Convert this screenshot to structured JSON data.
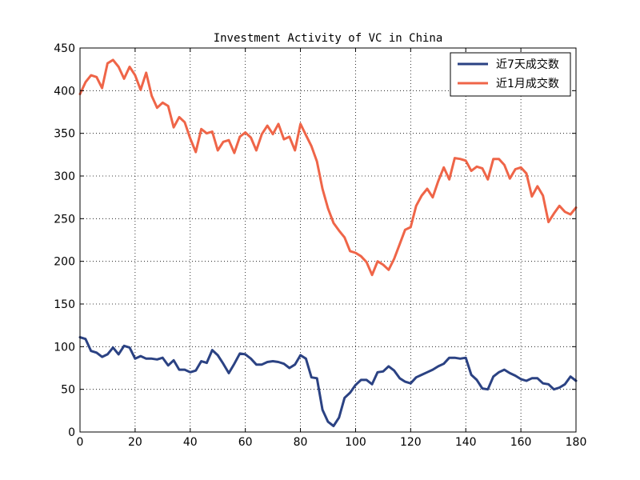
{
  "chart_data": {
    "type": "line",
    "title": "Investment Activity of VC in China",
    "xlabel": "",
    "ylabel": "",
    "xlim": [
      0,
      180
    ],
    "ylim": [
      0,
      450
    ],
    "xticks": [
      "0",
      "20",
      "40",
      "60",
      "80",
      "100",
      "120",
      "140",
      "160",
      "180"
    ],
    "yticks": [
      "0",
      "50",
      "100",
      "150",
      "200",
      "250",
      "300",
      "350",
      "400",
      "450"
    ],
    "grid": true,
    "legend_position": "top-right",
    "series": [
      {
        "name": "近7天成交数",
        "color": "#2b4283",
        "x": [
          0,
          2,
          4,
          6,
          8,
          10,
          12,
          14,
          16,
          18,
          20,
          22,
          24,
          26,
          28,
          30,
          32,
          34,
          36,
          38,
          40,
          42,
          44,
          46,
          48,
          50,
          52,
          54,
          56,
          58,
          60,
          62,
          64,
          66,
          68,
          70,
          72,
          74,
          76,
          78,
          80,
          82,
          84,
          86,
          88,
          90,
          92,
          94,
          96,
          98,
          100,
          102,
          104,
          106,
          108,
          110,
          112,
          114,
          116,
          118,
          120,
          122,
          124,
          126,
          128,
          130,
          132,
          134,
          136,
          138,
          140,
          142,
          144,
          146,
          148,
          150,
          152,
          154,
          156,
          158,
          160,
          162,
          164,
          166,
          168,
          170,
          172,
          174,
          176,
          178,
          180
        ],
        "values": [
          111,
          109,
          95,
          93,
          88,
          91,
          99,
          91,
          101,
          99,
          86,
          89,
          86,
          86,
          85,
          87,
          78,
          84,
          73,
          73,
          70,
          72,
          83,
          81,
          96,
          90,
          80,
          69,
          80,
          92,
          91,
          86,
          79,
          79,
          82,
          83,
          82,
          80,
          75,
          79,
          90,
          86,
          64,
          63,
          26,
          12,
          7,
          17,
          40,
          46,
          55,
          61,
          61,
          56,
          70,
          71,
          77,
          72,
          63,
          59,
          57,
          64,
          67,
          70,
          73,
          77,
          80,
          87,
          87,
          86,
          87,
          67,
          61,
          51,
          50,
          65,
          70,
          73,
          69,
          66,
          62,
          60,
          63,
          63,
          57,
          56,
          50,
          52,
          56,
          65,
          60
        ]
      },
      {
        "name": "近1月成交数",
        "color": "#ef6548",
        "x": [
          0,
          2,
          4,
          6,
          8,
          10,
          12,
          14,
          16,
          18,
          20,
          22,
          24,
          26,
          28,
          30,
          32,
          34,
          36,
          38,
          40,
          42,
          44,
          46,
          48,
          50,
          52,
          54,
          56,
          58,
          60,
          62,
          64,
          66,
          68,
          70,
          72,
          74,
          76,
          78,
          80,
          82,
          84,
          86,
          88,
          90,
          92,
          94,
          96,
          98,
          100,
          102,
          104,
          106,
          108,
          110,
          112,
          114,
          116,
          118,
          120,
          122,
          124,
          126,
          128,
          130,
          132,
          134,
          136,
          138,
          140,
          142,
          144,
          146,
          148,
          150,
          152,
          154,
          156,
          158,
          160,
          162,
          164,
          166,
          168,
          170,
          172,
          174,
          176,
          178,
          180
        ],
        "values": [
          396,
          410,
          418,
          416,
          403,
          432,
          436,
          428,
          414,
          428,
          418,
          401,
          421,
          394,
          380,
          386,
          382,
          357,
          369,
          363,
          344,
          328,
          355,
          350,
          352,
          330,
          340,
          342,
          327,
          346,
          351,
          345,
          330,
          349,
          359,
          349,
          361,
          343,
          346,
          330,
          361,
          348,
          335,
          317,
          285,
          262,
          245,
          236,
          228,
          212,
          210,
          206,
          199,
          184,
          200,
          196,
          190,
          203,
          220,
          237,
          240,
          265,
          277,
          285,
          275,
          294,
          310,
          296,
          321,
          320,
          318,
          306,
          311,
          309,
          296,
          320,
          320,
          313,
          297,
          308,
          310,
          303,
          276,
          288,
          277,
          246,
          256,
          265,
          258,
          255,
          263
        ]
      }
    ]
  }
}
